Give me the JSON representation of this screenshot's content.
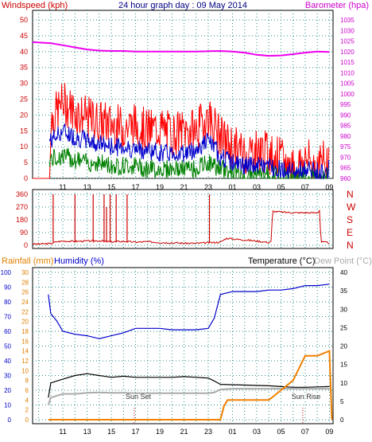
{
  "header": {
    "title": "24 hour graph day : 09 May 2014",
    "wind_label": "Windspeed (kph)",
    "baro_label": "Barometer (hpa)"
  },
  "lower_labels": {
    "rain": "Rainfall (mm)",
    "humidity": "Humidity (%)",
    "temperature": "Temperature (°C)",
    "dewpoint": "Dew Point (°C)",
    "sunset": "Sun Set",
    "sunrise": "Sun Rise"
  },
  "colors": {
    "wind_gust": "#ff0000",
    "wind_avg_blue": "#0000cc",
    "wind_avg_green": "#008000",
    "barometer": "#ee00ee",
    "direction": "#cc0000",
    "humidity": "#0000cc",
    "temperature": "#000000",
    "dewpoint": "#aaaaaa",
    "rainfall": "#f08000",
    "axis_text_left": "#cc0000",
    "axis_text_right_baro": "#cc00cc",
    "axis_text_humidity": "#0000cc",
    "axis_text_rain": "#e08000",
    "grid": "#2a8a8a"
  },
  "chart_data": [
    {
      "type": "line",
      "title": "24 hour graph day : 09 May 2014",
      "xlabel": "",
      "ylabel": "Windspeed (kph)",
      "y2label": "Barometer (hpa)",
      "x_ticks": [
        "11",
        "13",
        "15",
        "17",
        "19",
        "21",
        "23",
        "01",
        "03",
        "05",
        "07",
        "09"
      ],
      "ylim": [
        0,
        50
      ],
      "y_ticks": [
        0,
        5,
        10,
        15,
        20,
        25,
        30,
        35,
        40,
        45,
        50
      ],
      "y2lim": [
        960,
        1035
      ],
      "y2_ticks": [
        960,
        965,
        970,
        975,
        980,
        985,
        990,
        995,
        1000,
        1005,
        1010,
        1015,
        1020,
        1025,
        1030,
        1035
      ],
      "series": [
        {
          "name": "Windspeed (kph)",
          "x": [
            9.9,
            10,
            11,
            12,
            13,
            14,
            15,
            16,
            17,
            18,
            19,
            20,
            21,
            22,
            23,
            24,
            25,
            26,
            27,
            28,
            29,
            30,
            31,
            32,
            33
          ],
          "values": [
            0,
            18,
            24,
            21,
            19,
            18,
            17,
            16,
            17,
            15,
            16,
            14,
            15,
            15,
            20,
            13,
            10,
            8,
            9,
            8,
            6,
            3,
            6,
            4,
            6
          ]
        },
        {
          "name": "",
          "x": [
            10,
            11,
            12,
            13,
            14,
            15,
            16,
            17,
            18,
            19,
            20,
            21,
            22,
            23,
            24,
            25,
            26,
            27,
            28,
            29,
            30,
            31,
            32,
            33
          ],
          "values": [
            12,
            15,
            13,
            12,
            11,
            10,
            10,
            9,
            9,
            8,
            8,
            8,
            9,
            12,
            7,
            5,
            4,
            4,
            4,
            3,
            2,
            3,
            2,
            3
          ]
        },
        {
          "name": "",
          "x": [
            10,
            11,
            12,
            13,
            14,
            15,
            16,
            17,
            18,
            19,
            20,
            21,
            22,
            23,
            24,
            25,
            26,
            27,
            28,
            29,
            30,
            31,
            32,
            33
          ],
          "values": [
            6,
            7,
            6,
            5,
            5,
            4,
            4,
            4,
            3,
            3,
            3,
            3,
            3,
            5,
            3,
            2,
            1,
            1,
            1,
            1,
            0,
            1,
            0,
            1
          ]
        },
        {
          "name": "Barometer (hpa)",
          "axis": "right",
          "x": [
            8.5,
            10,
            11,
            12,
            13,
            14,
            15,
            16,
            17,
            18,
            19,
            20,
            21,
            22,
            23,
            24,
            25,
            26,
            27,
            28,
            29,
            30,
            31,
            32,
            33
          ],
          "values": [
            1024.5,
            1024,
            1023,
            1022,
            1021,
            1020.5,
            1020.3,
            1020.3,
            1020,
            1020,
            1020,
            1020,
            1020,
            1020,
            1020.2,
            1020.3,
            1020,
            1019.5,
            1018.5,
            1018,
            1018.2,
            1018.8,
            1019.5,
            1020,
            1019.8
          ]
        }
      ]
    },
    {
      "type": "line",
      "title": "",
      "xlabel": "",
      "ylabel": "",
      "y_ticks": [
        0,
        90,
        180,
        270,
        360
      ],
      "ylim": [
        0,
        360
      ],
      "right_labels": [
        "N",
        "W",
        "S",
        "E",
        "N"
      ],
      "x_ticks": [
        "11",
        "13",
        "15",
        "17",
        "19",
        "21",
        "23",
        "01",
        "03",
        "05",
        "07",
        "09"
      ],
      "series": [
        {
          "name": "",
          "x": [
            8.5,
            10,
            10.5,
            11,
            12,
            13,
            14,
            15,
            16,
            17,
            18,
            19,
            20,
            21,
            22,
            23,
            24,
            24.5,
            25,
            26,
            27,
            28,
            28.2,
            28.3,
            29,
            30,
            31,
            32,
            32.2,
            32.3,
            33
          ],
          "values": [
            8,
            12,
            25,
            30,
            28,
            30,
            32,
            25,
            28,
            22,
            25,
            20,
            18,
            15,
            14,
            18,
            22,
            50,
            45,
            38,
            30,
            20,
            28,
            240,
            235,
            230,
            230,
            230,
            248,
            24,
            18
          ]
        }
      ],
      "spikes": [
        {
          "x": 10.2,
          "value": 360
        },
        {
          "x": 12.0,
          "value": 360
        },
        {
          "x": 13.5,
          "value": 360
        },
        {
          "x": 14.4,
          "value": 360
        },
        {
          "x": 14.6,
          "value": 270
        },
        {
          "x": 14.9,
          "value": 360
        },
        {
          "x": 15.4,
          "value": 360
        },
        {
          "x": 16.3,
          "value": 360
        },
        {
          "x": 23.1,
          "value": 360
        }
      ]
    },
    {
      "type": "line",
      "title": "",
      "xlabel": "",
      "ylabel": "Humidity (%)",
      "y2label": "Temperature (°C)",
      "x_ticks": [
        "11",
        "13",
        "15",
        "17",
        "19",
        "21",
        "23",
        "01",
        "03",
        "05",
        "07",
        "09"
      ],
      "y_humidity_ticks": [
        0,
        10,
        20,
        30,
        40,
        50,
        60,
        70,
        80,
        90,
        100
      ],
      "y_rain_ticks": [
        0,
        2,
        4,
        6,
        8,
        10,
        12,
        14,
        16,
        18,
        20,
        22,
        24,
        26,
        28,
        30
      ],
      "y_temp_ticks": [
        0,
        5,
        10,
        15,
        20,
        25,
        30,
        35,
        40
      ],
      "series": [
        {
          "name": "Humidity (%)",
          "x": [
            9.8,
            10,
            10.5,
            11,
            12,
            13,
            14,
            15,
            16,
            17,
            18,
            19,
            20,
            21,
            22,
            23,
            23.5,
            24,
            25,
            26,
            27,
            28,
            29,
            30,
            31,
            32,
            33
          ],
          "values": [
            85,
            72,
            67,
            60,
            58,
            57,
            55,
            57,
            59,
            62,
            62,
            62,
            61,
            61,
            61,
            62,
            69,
            85,
            87,
            87,
            87,
            88,
            88,
            89,
            91,
            91,
            92
          ]
        },
        {
          "name": "Temperature (°C)",
          "axis": "right",
          "x": [
            9.8,
            10,
            11,
            12,
            13,
            14,
            15,
            16,
            17,
            18,
            19,
            20,
            21,
            22,
            23,
            23.5,
            24,
            25,
            26,
            27,
            28,
            29,
            30,
            31,
            32,
            33
          ],
          "values": [
            6,
            10,
            11,
            12,
            12.5,
            12,
            11.5,
            11.8,
            11.5,
            11.5,
            11.5,
            11.5,
            11.7,
            11.5,
            11.3,
            10.5,
            9.6,
            9.5,
            9.4,
            9.3,
            9.2,
            9.0,
            8.8,
            8.8,
            8.9,
            9.0
          ]
        },
        {
          "name": "Dew Point (°C)",
          "axis": "right",
          "x": [
            9.8,
            10,
            11,
            12,
            13,
            14,
            15,
            16,
            17,
            18,
            19,
            20,
            21,
            22,
            23,
            23.5,
            24,
            25,
            26,
            27,
            28,
            29,
            30,
            31,
            32,
            33
          ],
          "values": [
            4,
            6,
            7,
            7,
            7.3,
            7.4,
            7.3,
            7.3,
            7.2,
            7.2,
            7.2,
            7.2,
            7.2,
            7.2,
            7.2,
            7.4,
            8.2,
            8.4,
            8.4,
            8.4,
            8.4,
            8.4,
            8.4,
            8.4,
            8.4,
            8.4
          ]
        },
        {
          "name": "Rainfall (mm)",
          "axis": "rain",
          "x": [
            9.8,
            24,
            24.3,
            24.6,
            25,
            27,
            28,
            29,
            30,
            31,
            32,
            33,
            33.2
          ],
          "values": [
            0,
            0,
            1.4,
            2,
            2,
            2,
            2,
            3,
            4,
            6.5,
            6.5,
            7,
            0
          ]
        }
      ]
    }
  ]
}
